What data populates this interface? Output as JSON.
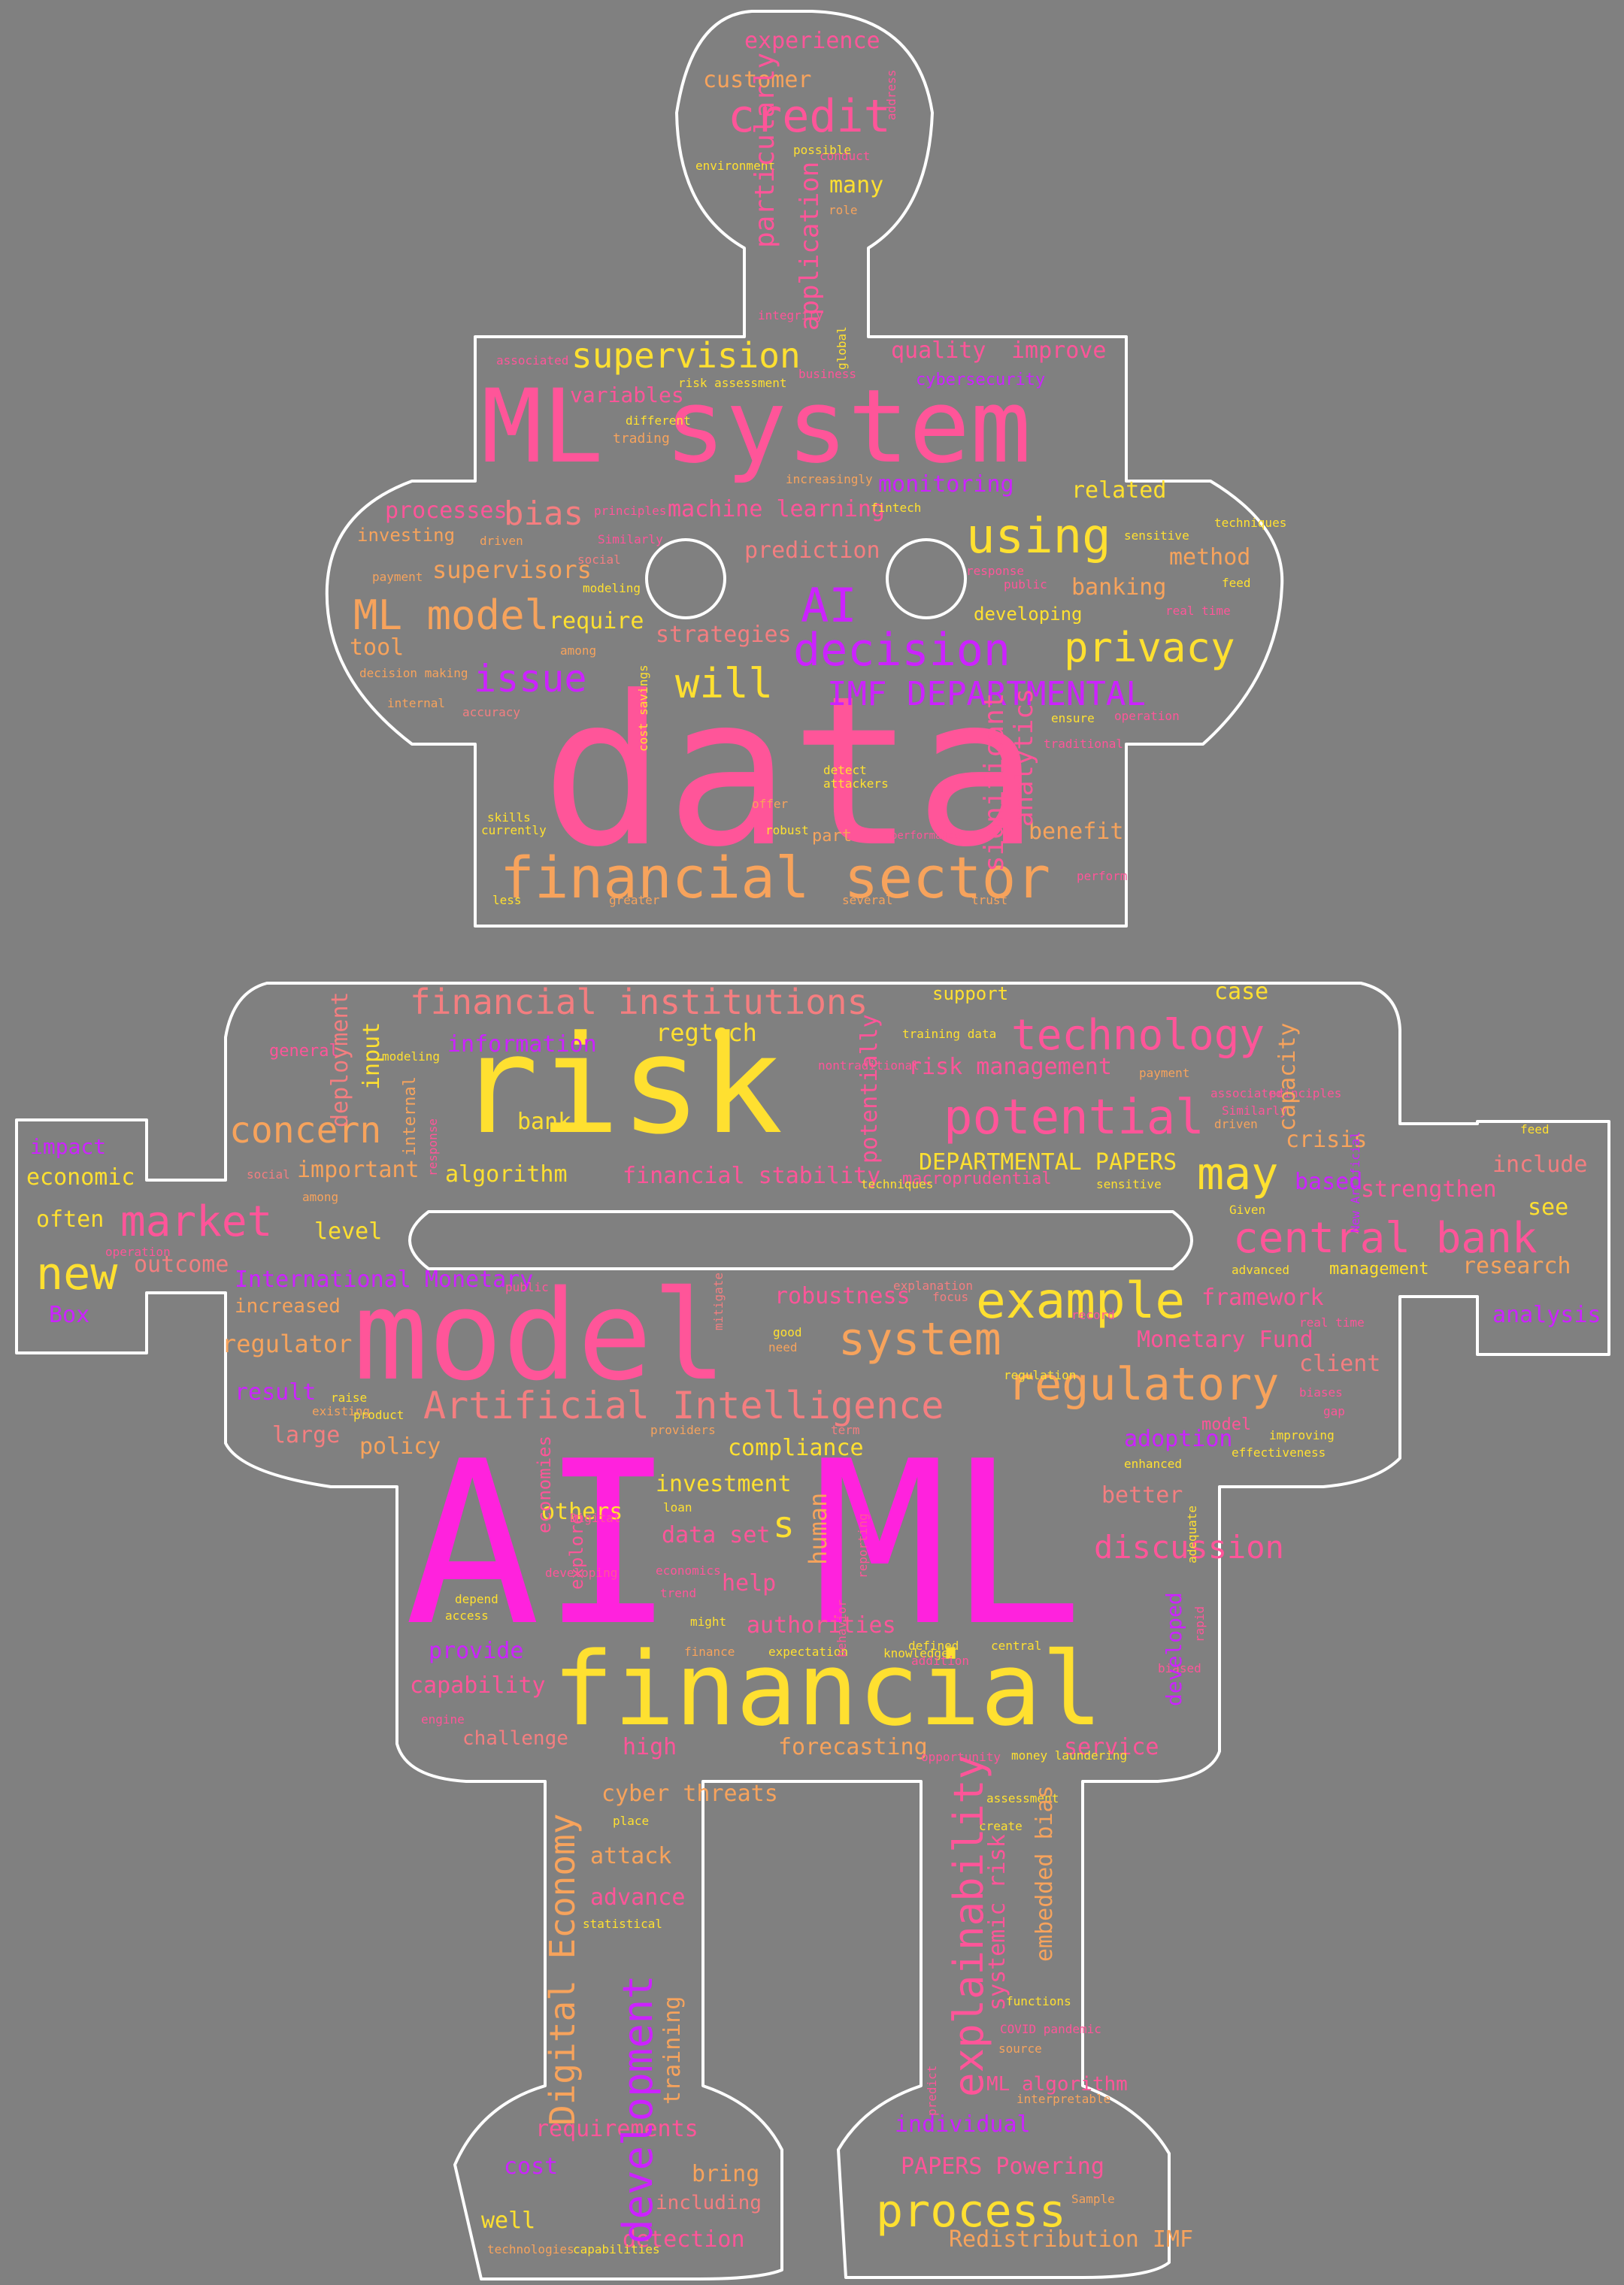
{
  "background": "#808080",
  "outline_color": "#ffffff",
  "palette": {
    "magenta": "#ff22dd",
    "pink": "#ff5599",
    "salmon": "#f47e80",
    "orange": "#f7a35c",
    "yellow": "#ffe030",
    "purple": "#cc22ff"
  },
  "words": [
    {
      "text": "data",
      "color": "pink"
    },
    {
      "text": "AI ML",
      "color": "magenta"
    },
    {
      "text": "ML system",
      "color": "pink"
    },
    {
      "text": "model",
      "color": "pink"
    },
    {
      "text": "risk",
      "color": "yellow"
    },
    {
      "text": "financial",
      "color": "yellow"
    },
    {
      "text": "financial sector",
      "color": "orange"
    },
    {
      "text": "credit",
      "color": "pink"
    },
    {
      "text": "supervision",
      "color": "yellow"
    },
    {
      "text": "decision",
      "color": "purple"
    },
    {
      "text": "privacy",
      "color": "yellow"
    },
    {
      "text": "using",
      "color": "yellow"
    },
    {
      "text": "ML model",
      "color": "orange"
    },
    {
      "text": "bias",
      "color": "salmon"
    },
    {
      "text": "issue",
      "color": "purple"
    },
    {
      "text": "will",
      "color": "yellow"
    },
    {
      "text": "AI",
      "color": "purple"
    },
    {
      "text": "IMF DEPARTMENTAL",
      "color": "purple"
    },
    {
      "text": "financial institutions",
      "color": "salmon"
    },
    {
      "text": "technology",
      "color": "pink"
    },
    {
      "text": "potential",
      "color": "pink"
    },
    {
      "text": "central bank",
      "color": "pink"
    },
    {
      "text": "example",
      "color": "yellow"
    },
    {
      "text": "regulatory",
      "color": "orange"
    },
    {
      "text": "system",
      "color": "orange"
    },
    {
      "text": "Artificial Intelligence",
      "color": "salmon"
    },
    {
      "text": "market",
      "color": "pink"
    },
    {
      "text": "new",
      "color": "yellow"
    },
    {
      "text": "concern",
      "color": "orange"
    },
    {
      "text": "may",
      "color": "yellow"
    },
    {
      "text": "explainability",
      "color": "pink"
    },
    {
      "text": "development",
      "color": "purple"
    },
    {
      "text": "Digital Economy",
      "color": "orange"
    },
    {
      "text": "process",
      "color": "yellow"
    },
    {
      "text": "customer",
      "color": "orange"
    },
    {
      "text": "experience",
      "color": "pink"
    },
    {
      "text": "many",
      "color": "yellow"
    },
    {
      "text": "particularly",
      "color": "pink"
    },
    {
      "text": "application",
      "color": "pink"
    },
    {
      "text": "quality",
      "color": "pink"
    },
    {
      "text": "improve",
      "color": "pink"
    },
    {
      "text": "cybersecurity",
      "color": "purple"
    },
    {
      "text": "variables",
      "color": "pink"
    },
    {
      "text": "risk assessment",
      "color": "yellow"
    },
    {
      "text": "different",
      "color": "yellow"
    },
    {
      "text": "trading",
      "color": "orange"
    },
    {
      "text": "monitoring",
      "color": "purple"
    },
    {
      "text": "related",
      "color": "yellow"
    },
    {
      "text": "processes",
      "color": "pink"
    },
    {
      "text": "machine learning",
      "color": "pink"
    },
    {
      "text": "prediction",
      "color": "salmon"
    },
    {
      "text": "investing",
      "color": "orange"
    },
    {
      "text": "supervisors",
      "color": "orange"
    },
    {
      "text": "method",
      "color": "orange"
    },
    {
      "text": "banking",
      "color": "orange"
    },
    {
      "text": "require",
      "color": "yellow"
    },
    {
      "text": "strategies",
      "color": "salmon"
    },
    {
      "text": "developing",
      "color": "yellow"
    },
    {
      "text": "tool",
      "color": "orange"
    },
    {
      "text": "decision making",
      "color": "orange"
    },
    {
      "text": "accuracy",
      "color": "salmon"
    },
    {
      "text": "significant",
      "color": "pink"
    },
    {
      "text": "analytics",
      "color": "pink"
    },
    {
      "text": "benefit",
      "color": "orange"
    },
    {
      "text": "part",
      "color": "orange"
    },
    {
      "text": "offer",
      "color": "orange"
    },
    {
      "text": "robust",
      "color": "yellow"
    },
    {
      "text": "skills",
      "color": "yellow"
    },
    {
      "text": "currently",
      "color": "yellow"
    },
    {
      "text": "detect",
      "color": "yellow"
    },
    {
      "text": "attackers",
      "color": "yellow"
    },
    {
      "text": "performance",
      "color": "pink"
    },
    {
      "text": "ensure",
      "color": "yellow"
    },
    {
      "text": "cost savings",
      "color": "yellow"
    },
    {
      "text": "fintech",
      "color": "yellow"
    },
    {
      "text": "support",
      "color": "yellow"
    },
    {
      "text": "case",
      "color": "yellow"
    },
    {
      "text": "regtech",
      "color": "yellow"
    },
    {
      "text": "information",
      "color": "purple"
    },
    {
      "text": "deployment",
      "color": "salmon"
    },
    {
      "text": "input",
      "color": "yellow"
    },
    {
      "text": "risk management",
      "color": "pink"
    },
    {
      "text": "training data",
      "color": "yellow"
    },
    {
      "text": "capacity",
      "color": "orange"
    },
    {
      "text": "crisis",
      "color": "orange"
    },
    {
      "text": "bank",
      "color": "yellow"
    },
    {
      "text": "algorithm",
      "color": "yellow"
    },
    {
      "text": "important",
      "color": "orange"
    },
    {
      "text": "DEPARTMENTAL PAPERS",
      "color": "yellow"
    },
    {
      "text": "financial stability",
      "color": "pink"
    },
    {
      "text": "potentially",
      "color": "pink"
    },
    {
      "text": "macroprudential",
      "color": "pink"
    },
    {
      "text": "impact",
      "color": "purple"
    },
    {
      "text": "economic",
      "color": "yellow"
    },
    {
      "text": "often",
      "color": "yellow"
    },
    {
      "text": "level",
      "color": "yellow"
    },
    {
      "text": "outcome",
      "color": "salmon"
    },
    {
      "text": "include",
      "color": "salmon"
    },
    {
      "text": "strengthen",
      "color": "pink"
    },
    {
      "text": "based",
      "color": "purple"
    },
    {
      "text": "see",
      "color": "yellow"
    },
    {
      "text": "research",
      "color": "orange"
    },
    {
      "text": "management",
      "color": "yellow"
    },
    {
      "text": "International Monetary",
      "color": "purple"
    },
    {
      "text": "robustness",
      "color": "pink"
    },
    {
      "text": "framework",
      "color": "pink"
    },
    {
      "text": "analysis",
      "color": "purple"
    },
    {
      "text": "Monetary Fund",
      "color": "pink"
    },
    {
      "text": "Box",
      "color": "purple"
    },
    {
      "text": "increased",
      "color": "orange"
    },
    {
      "text": "regulator",
      "color": "orange"
    },
    {
      "text": "client",
      "color": "salmon"
    },
    {
      "text": "result",
      "color": "purple"
    },
    {
      "text": "large",
      "color": "salmon"
    },
    {
      "text": "policy",
      "color": "orange"
    },
    {
      "text": "compliance",
      "color": "yellow"
    },
    {
      "text": "adoption",
      "color": "purple"
    },
    {
      "text": "investment",
      "color": "yellow"
    },
    {
      "text": "better",
      "color": "salmon"
    },
    {
      "text": "others",
      "color": "yellow"
    },
    {
      "text": "data set",
      "color": "pink"
    },
    {
      "text": "s",
      "color": "yellow"
    },
    {
      "text": "human",
      "color": "orange"
    },
    {
      "text": "discussion",
      "color": "pink"
    },
    {
      "text": "help",
      "color": "pink"
    },
    {
      "text": "authorities",
      "color": "pink"
    },
    {
      "text": "provide",
      "color": "purple"
    },
    {
      "text": "capability",
      "color": "pink"
    },
    {
      "text": "challenge",
      "color": "salmon"
    },
    {
      "text": "high",
      "color": "pink"
    },
    {
      "text": "forecasting",
      "color": "orange"
    },
    {
      "text": "service",
      "color": "pink"
    },
    {
      "text": "developed",
      "color": "purple"
    },
    {
      "text": "cyber threats",
      "color": "orange"
    },
    {
      "text": "attack",
      "color": "orange"
    },
    {
      "text": "advance",
      "color": "pink"
    },
    {
      "text": "training",
      "color": "orange"
    },
    {
      "text": "systemic risk",
      "color": "pink"
    },
    {
      "text": "embedded bias",
      "color": "orange"
    },
    {
      "text": "requirements",
      "color": "pink"
    },
    {
      "text": "cost",
      "color": "purple"
    },
    {
      "text": "bring",
      "color": "orange"
    },
    {
      "text": "well",
      "color": "yellow"
    },
    {
      "text": "including",
      "color": "salmon"
    },
    {
      "text": "detection",
      "color": "pink"
    },
    {
      "text": "individual",
      "color": "purple"
    },
    {
      "text": "PAPERS Powering",
      "color": "pink"
    },
    {
      "text": "Redistribution IMF",
      "color": "orange"
    },
    {
      "text": "ML algorithm",
      "color": "pink"
    },
    {
      "text": "source",
      "color": "orange"
    },
    {
      "text": "functions",
      "color": "yellow"
    },
    {
      "text": "Sample",
      "color": "orange"
    },
    {
      "text": "technologies",
      "color": "orange"
    },
    {
      "text": "capabilities",
      "color": "yellow"
    },
    {
      "text": "place",
      "color": "yellow"
    },
    {
      "text": "statistical",
      "color": "yellow"
    },
    {
      "text": "assessment",
      "color": "yellow"
    },
    {
      "text": "create",
      "color": "yellow"
    },
    {
      "text": "predict",
      "color": "pink"
    },
    {
      "text": "interpretable",
      "color": "orange"
    },
    {
      "text": "defined",
      "color": "yellow"
    },
    {
      "text": "central",
      "color": "yellow"
    },
    {
      "text": "knowledge",
      "color": "yellow"
    },
    {
      "text": "finance",
      "color": "orange"
    },
    {
      "text": "expectation",
      "color": "yellow"
    },
    {
      "text": "might",
      "color": "yellow"
    },
    {
      "text": "trend",
      "color": "pink"
    },
    {
      "text": "access",
      "color": "yellow"
    },
    {
      "text": "depend",
      "color": "yellow"
    },
    {
      "text": "explore",
      "color": "pink"
    },
    {
      "text": "loan",
      "color": "yellow"
    },
    {
      "text": "enhanced",
      "color": "yellow"
    },
    {
      "text": "effectiveness",
      "color": "yellow"
    },
    {
      "text": "improving",
      "color": "yellow"
    },
    {
      "text": "biases",
      "color": "pink"
    },
    {
      "text": "providers",
      "color": "orange"
    },
    {
      "text": "regulation",
      "color": "yellow"
    },
    {
      "text": "good",
      "color": "yellow"
    },
    {
      "text": "mitigate",
      "color": "salmon"
    },
    {
      "text": "explanation",
      "color": "salmon"
    },
    {
      "text": "focus",
      "color": "salmon"
    },
    {
      "text": "raise",
      "color": "yellow"
    },
    {
      "text": "existing",
      "color": "orange"
    },
    {
      "text": "product",
      "color": "yellow"
    },
    {
      "text": "advanced",
      "color": "yellow"
    },
    {
      "text": "Given",
      "color": "yellow"
    },
    {
      "text": "associated",
      "color": "pink"
    },
    {
      "text": "principles",
      "color": "pink"
    },
    {
      "text": "Similarly",
      "color": "pink"
    },
    {
      "text": "driven",
      "color": "orange"
    },
    {
      "text": "payment",
      "color": "orange"
    },
    {
      "text": "modeling",
      "color": "yellow"
    },
    {
      "text": "social",
      "color": "salmon"
    },
    {
      "text": "among",
      "color": "orange"
    },
    {
      "text": "internal",
      "color": "orange"
    },
    {
      "text": "response",
      "color": "pink"
    },
    {
      "text": "public",
      "color": "pink"
    },
    {
      "text": "sensitive",
      "color": "yellow"
    },
    {
      "text": "techniques",
      "color": "yellow"
    },
    {
      "text": "feed",
      "color": "yellow"
    },
    {
      "text": "real time",
      "color": "pink"
    },
    {
      "text": "operation",
      "color": "pink"
    },
    {
      "text": "traditional",
      "color": "pink"
    },
    {
      "text": "perform",
      "color": "pink"
    },
    {
      "text": "trust",
      "color": "orange"
    },
    {
      "text": "less",
      "color": "yellow"
    },
    {
      "text": "greater",
      "color": "orange"
    },
    {
      "text": "several",
      "color": "orange"
    },
    {
      "text": "global",
      "color": "yellow"
    },
    {
      "text": "business",
      "color": "pink"
    },
    {
      "text": "increasingly",
      "color": "orange"
    },
    {
      "text": "conduct",
      "color": "pink"
    },
    {
      "text": "environment",
      "color": "yellow"
    },
    {
      "text": "possible",
      "color": "yellow"
    },
    {
      "text": "role",
      "color": "orange"
    },
    {
      "text": "integrity",
      "color": "pink"
    },
    {
      "text": "address",
      "color": "pink"
    },
    {
      "text": "stakeholders",
      "color": "pink"
    },
    {
      "text": "effective",
      "color": "pink"
    },
    {
      "text": "Cooperation",
      "color": "yellow"
    },
    {
      "text": "play",
      "color": "pink"
    },
    {
      "text": "natural language",
      "color": "yellow"
    },
    {
      "text": "Annex",
      "color": "orange"
    },
    {
      "text": "increase",
      "color": "yellow"
    },
    {
      "text": "control",
      "color": "pink"
    },
    {
      "text": "unstructured data",
      "color": "yellow"
    },
    {
      "text": "consumer",
      "color": "pink"
    },
    {
      "text": "underwriting",
      "color": "purple"
    },
    {
      "text": "terrorism",
      "color": "salmon"
    },
    {
      "text": "explain",
      "color": "orange"
    },
    {
      "text": "make",
      "color": "pink"
    },
    {
      "text": "various",
      "color": "yellow"
    },
    {
      "text": "default",
      "color": "pink"
    },
    {
      "text": "rising",
      "color": "pink"
    },
    {
      "text": "network",
      "color": "pink"
    },
    {
      "text": "value",
      "color": "pink"
    },
    {
      "text": "national",
      "color": "pink"
    },
    {
      "text": "term",
      "color": "salmon"
    },
    {
      "text": "need",
      "color": "orange"
    },
    {
      "text": "nontraditional",
      "color": "pink"
    },
    {
      "text": "adequate",
      "color": "yellow"
    },
    {
      "text": "rapid",
      "color": "pink"
    },
    {
      "text": "biased",
      "color": "pink"
    },
    {
      "text": "addition",
      "color": "pink"
    },
    {
      "text": "economies",
      "color": "pink"
    },
    {
      "text": "developing",
      "color": "pink"
    },
    {
      "text": "Digital",
      "color": "pink"
    },
    {
      "text": "economics",
      "color": "pink"
    },
    {
      "text": "reporting",
      "color": "pink"
    },
    {
      "text": "behavior",
      "color": "pink"
    },
    {
      "text": "general",
      "color": "pink"
    },
    {
      "text": "record",
      "color": "pink"
    },
    {
      "text": "gap",
      "color": "pink"
    },
    {
      "text": "model",
      "color": "pink"
    },
    {
      "text": "engine",
      "color": "pink"
    },
    {
      "text": "money laundering",
      "color": "yellow"
    },
    {
      "text": "COVID pandemic",
      "color": "pink"
    },
    {
      "text": "New Artificial",
      "color": "purple"
    },
    {
      "text": "opportunity",
      "color": "pink"
    }
  ]
}
